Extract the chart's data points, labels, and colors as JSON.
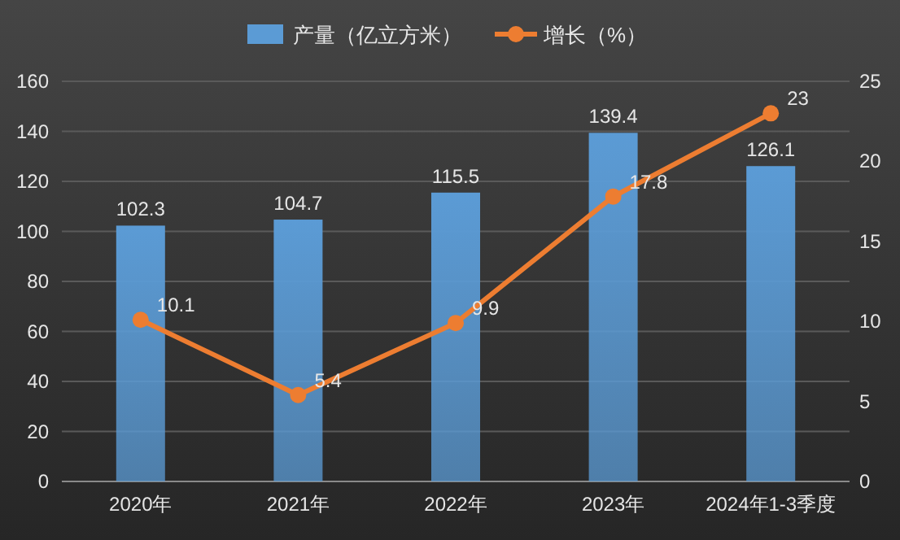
{
  "chart_data": {
    "type": "bar",
    "categories": [
      "2020年",
      "2021年",
      "2022年",
      "2023年",
      "2024年1-3季度"
    ],
    "series": [
      {
        "name": "产量（亿立方米）",
        "color": "#5b9bd5",
        "values": [
          102.3,
          104.7,
          115.5,
          139.4,
          126.1
        ]
      },
      {
        "name": "增长（%）",
        "type": "line",
        "axis": "y2",
        "color": "#ed7d31",
        "values": [
          10.1,
          5.4,
          9.9,
          17.8,
          23
        ]
      }
    ],
    "ylim": [
      0,
      160
    ],
    "yticks": [
      0,
      20,
      40,
      60,
      80,
      100,
      120,
      140,
      160
    ],
    "y2lim": [
      0,
      25
    ],
    "y2ticks": [
      0,
      5,
      10,
      15,
      20,
      25
    ],
    "grid": "y",
    "legend": "top",
    "marker": "circle",
    "data_labels": true
  }
}
